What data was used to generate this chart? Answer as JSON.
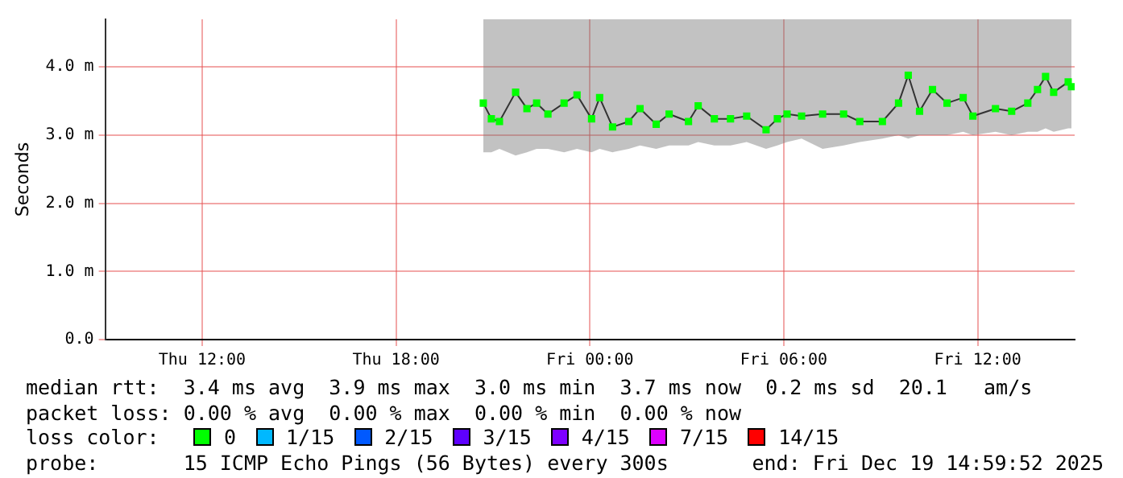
{
  "chart_data": {
    "type": "line",
    "ylabel": "Seconds",
    "xlim": [
      "2025-12-18T09:00",
      "2025-12-19T15:00"
    ],
    "xticks": [
      {
        "value": "2025-12-18T12:00",
        "label": "Thu 12:00"
      },
      {
        "value": "2025-12-18T18:00",
        "label": "Thu 18:00"
      },
      {
        "value": "2025-12-19T00:00",
        "label": "Fri 00:00"
      },
      {
        "value": "2025-12-19T06:00",
        "label": "Fri 06:00"
      },
      {
        "value": "2025-12-19T12:00",
        "label": "Fri 12:00"
      }
    ],
    "ylim": [
      0,
      4.7
    ],
    "yticks": [
      {
        "value": 0,
        "label": "0.0"
      },
      {
        "value": 1,
        "label": "1.0 m"
      },
      {
        "value": 2,
        "label": "2.0 m"
      },
      {
        "value": 3,
        "label": "3.0 m"
      },
      {
        "value": 4,
        "label": "4.0 m"
      }
    ],
    "grid": true,
    "legend": "bottom",
    "legend_title": "loss color:",
    "marker": "square",
    "line_style": "solid",
    "series": [
      {
        "name": "0",
        "color": "#00ff00",
        "x": [
          "2025-12-18T20:42",
          "2025-12-18T20:57",
          "2025-12-18T21:12",
          "2025-12-18T21:42",
          "2025-12-18T22:03",
          "2025-12-18T22:21",
          "2025-12-18T22:42",
          "2025-12-18T23:12",
          "2025-12-18T23:36",
          "2025-12-19T00:03",
          "2025-12-19T00:18",
          "2025-12-19T00:42",
          "2025-12-19T01:12",
          "2025-12-19T01:33",
          "2025-12-19T02:03",
          "2025-12-19T02:27",
          "2025-12-19T03:03",
          "2025-12-19T03:21",
          "2025-12-19T03:51",
          "2025-12-19T04:21",
          "2025-12-19T04:51",
          "2025-12-19T05:27",
          "2025-12-19T05:48",
          "2025-12-19T06:06",
          "2025-12-19T06:33",
          "2025-12-19T07:12",
          "2025-12-19T07:51",
          "2025-12-19T08:21",
          "2025-12-19T09:03",
          "2025-12-19T09:33",
          "2025-12-19T09:51",
          "2025-12-19T10:12",
          "2025-12-19T10:36",
          "2025-12-19T11:03",
          "2025-12-19T11:33",
          "2025-12-19T11:51",
          "2025-12-19T12:33",
          "2025-12-19T13:03",
          "2025-12-19T13:33",
          "2025-12-19T13:51",
          "2025-12-19T14:06",
          "2025-12-19T14:21",
          "2025-12-19T14:48",
          "2025-12-19T14:54"
        ],
        "values": [
          3.47,
          3.24,
          3.2,
          3.63,
          3.39,
          3.47,
          3.31,
          3.47,
          3.59,
          3.24,
          3.55,
          3.12,
          3.2,
          3.39,
          3.16,
          3.31,
          3.2,
          3.43,
          3.24,
          3.24,
          3.28,
          3.08,
          3.24,
          3.31,
          3.28,
          3.31,
          3.31,
          3.2,
          3.2,
          3.47,
          3.88,
          3.35,
          3.67,
          3.47,
          3.55,
          3.28,
          3.39,
          3.35,
          3.47,
          3.67,
          3.86,
          3.63,
          3.78,
          3.71
        ],
        "lower": [
          2.75,
          2.75,
          2.8,
          2.7,
          2.75,
          2.8,
          2.8,
          2.75,
          2.8,
          2.75,
          2.8,
          2.75,
          2.8,
          2.85,
          2.8,
          2.85,
          2.85,
          2.9,
          2.85,
          2.85,
          2.9,
          2.8,
          2.85,
          2.9,
          2.95,
          2.8,
          2.85,
          2.9,
          2.95,
          3.0,
          2.95,
          3.0,
          3.0,
          3.0,
          3.05,
          3.0,
          3.05,
          3.0,
          3.05,
          3.05,
          3.1,
          3.05,
          3.1,
          3.1
        ],
        "upper": [
          4.7,
          4.7,
          4.7,
          4.7,
          4.7,
          4.7,
          4.7,
          4.7,
          4.7,
          4.7,
          4.7,
          4.7,
          4.7,
          4.7,
          4.7,
          4.7,
          4.7,
          4.7,
          4.7,
          4.7,
          4.7,
          4.7,
          4.7,
          4.7,
          4.7,
          4.7,
          4.7,
          4.7,
          4.7,
          4.7,
          4.7,
          4.7,
          4.7,
          4.7,
          4.7,
          4.7,
          4.7,
          4.7,
          4.7,
          4.7,
          4.7,
          4.7,
          4.7,
          4.7
        ]
      },
      {
        "name": "1/15",
        "color": "#00b8ff"
      },
      {
        "name": "2/15",
        "color": "#0059ff"
      },
      {
        "name": "3/15",
        "color": "#5e00ff"
      },
      {
        "name": "4/15",
        "color": "#7e00ff"
      },
      {
        "name": "7/15",
        "color": "#dd00ff"
      },
      {
        "name": "14/15",
        "color": "#ff0000"
      }
    ],
    "annotations": [
      "median rtt:  3.4 ms avg  3.9 ms max  3.0 ms min  3.7 ms now  0.2 ms sd  20.1   am/s",
      "packet loss: 0.00 % avg  0.00 % max  0.00 % min  0.00 % now",
      "probe:       15 ICMP Echo Pings (56 Bytes) every 300s",
      "end: Fri Dec 19 14:59:52 2025"
    ]
  }
}
